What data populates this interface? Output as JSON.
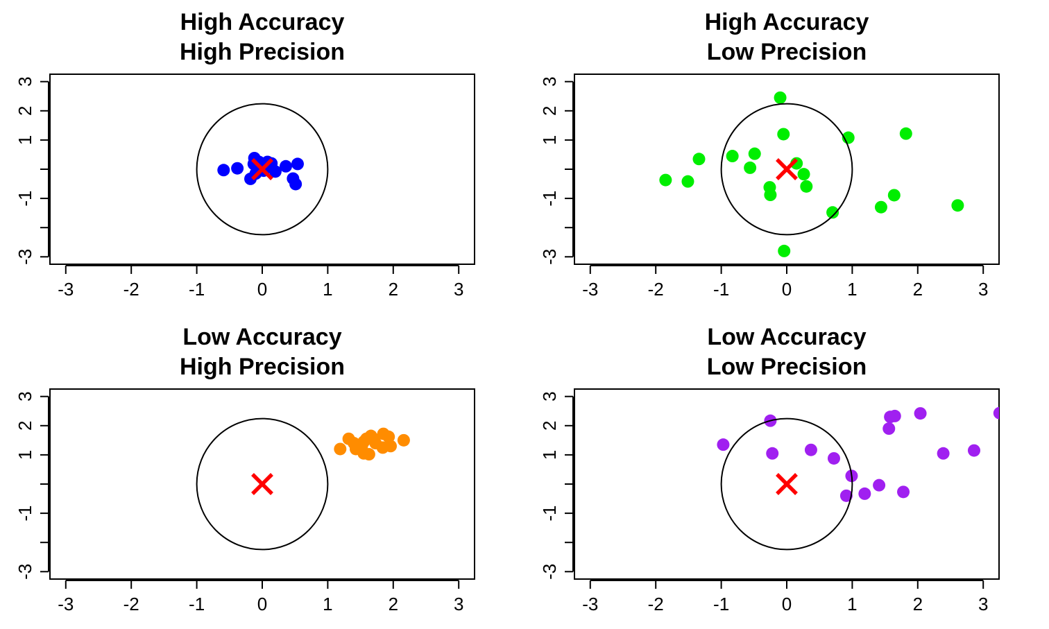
{
  "chart_data": [
    {
      "type": "scatter",
      "title": [
        "High Accuracy",
        "High Precision"
      ],
      "xlim": [
        -3.25,
        3.25
      ],
      "ylim": [
        -3.25,
        3.25
      ],
      "xticks": [
        -3,
        -2,
        -1,
        0,
        1,
        2,
        3
      ],
      "yticks": [
        -3,
        -2,
        -1,
        0,
        1,
        2,
        3
      ],
      "yticklabels": [
        "-3",
        "",
        "-1",
        "",
        "1",
        "2",
        "3"
      ],
      "point_color": "#0000ff",
      "target": {
        "x": 0,
        "y": 0,
        "radius": 1,
        "marker_color": "#ff0000"
      },
      "points": [
        {
          "x": -0.59,
          "y": -0.03
        },
        {
          "x": -0.38,
          "y": 0.03
        },
        {
          "x": -0.18,
          "y": -0.33
        },
        {
          "x": -0.13,
          "y": 0.18
        },
        {
          "x": -0.12,
          "y": 0.38
        },
        {
          "x": -0.05,
          "y": 0.25
        },
        {
          "x": 0.02,
          "y": -0.05
        },
        {
          "x": 0.05,
          "y": 0.15
        },
        {
          "x": 0.08,
          "y": 0.25
        },
        {
          "x": 0.14,
          "y": 0.2
        },
        {
          "x": 0.2,
          "y": -0.08
        },
        {
          "x": 0.36,
          "y": 0.1
        },
        {
          "x": 0.47,
          "y": -0.32
        },
        {
          "x": 0.51,
          "y": -0.51
        },
        {
          "x": 0.54,
          "y": 0.18
        },
        {
          "x": -0.1,
          "y": -0.15
        }
      ]
    },
    {
      "type": "scatter",
      "title": [
        "High Accuracy",
        "Low Precision"
      ],
      "xlim": [
        -3.25,
        3.25
      ],
      "ylim": [
        -3.25,
        3.25
      ],
      "xticks": [
        -3,
        -2,
        -1,
        0,
        1,
        2,
        3
      ],
      "yticks": [
        -3,
        -2,
        -1,
        0,
        1,
        2,
        3
      ],
      "yticklabels": [
        "-3",
        "",
        "-1",
        "",
        "1",
        "2",
        "3"
      ],
      "point_color": "#00ee00",
      "target": {
        "x": 0,
        "y": 0,
        "radius": 1,
        "marker_color": "#ff0000"
      },
      "points": [
        {
          "x": -1.85,
          "y": -0.37
        },
        {
          "x": -1.51,
          "y": -0.42
        },
        {
          "x": -1.34,
          "y": 0.35
        },
        {
          "x": -0.83,
          "y": 0.45
        },
        {
          "x": -0.49,
          "y": 0.53
        },
        {
          "x": -0.56,
          "y": 0.05
        },
        {
          "x": -0.26,
          "y": -0.62
        },
        {
          "x": -0.25,
          "y": -0.88
        },
        {
          "x": -0.1,
          "y": 2.45
        },
        {
          "x": -0.05,
          "y": 1.2
        },
        {
          "x": 0.15,
          "y": 0.2
        },
        {
          "x": 0.26,
          "y": -0.17
        },
        {
          "x": 0.3,
          "y": -0.59
        },
        {
          "x": -0.04,
          "y": -2.8
        },
        {
          "x": 0.7,
          "y": -1.48
        },
        {
          "x": 0.94,
          "y": 1.08
        },
        {
          "x": 1.44,
          "y": -1.3
        },
        {
          "x": 1.64,
          "y": -0.89
        },
        {
          "x": 1.82,
          "y": 1.22
        },
        {
          "x": 2.61,
          "y": -1.24
        }
      ]
    },
    {
      "type": "scatter",
      "title": [
        "Low Accuracy",
        "High Precision"
      ],
      "xlim": [
        -3.25,
        3.25
      ],
      "ylim": [
        -3.25,
        3.25
      ],
      "xticks": [
        -3,
        -2,
        -1,
        0,
        1,
        2,
        3
      ],
      "yticks": [
        -3,
        -2,
        -1,
        0,
        1,
        2,
        3
      ],
      "yticklabels": [
        "-3",
        "",
        "-1",
        "",
        "1",
        "2",
        "3"
      ],
      "point_color": "#ff8c00",
      "target": {
        "x": 0,
        "y": 0,
        "radius": 1,
        "marker_color": "#ff0000"
      },
      "points": [
        {
          "x": 1.19,
          "y": 1.2
        },
        {
          "x": 1.32,
          "y": 1.55
        },
        {
          "x": 1.4,
          "y": 1.4
        },
        {
          "x": 1.43,
          "y": 1.2
        },
        {
          "x": 1.52,
          "y": 1.3
        },
        {
          "x": 1.55,
          "y": 1.05
        },
        {
          "x": 1.59,
          "y": 1.55
        },
        {
          "x": 1.63,
          "y": 1.02
        },
        {
          "x": 1.66,
          "y": 1.65
        },
        {
          "x": 1.73,
          "y": 1.4
        },
        {
          "x": 1.84,
          "y": 1.25
        },
        {
          "x": 1.85,
          "y": 1.72
        },
        {
          "x": 1.93,
          "y": 1.62
        },
        {
          "x": 1.96,
          "y": 1.3
        },
        {
          "x": 2.16,
          "y": 1.5
        },
        {
          "x": 1.55,
          "y": 1.45
        },
        {
          "x": 1.7,
          "y": 1.55
        }
      ]
    },
    {
      "type": "scatter",
      "title": [
        "Low Accuracy",
        "Low Precision"
      ],
      "xlim": [
        -3.25,
        3.25
      ],
      "ylim": [
        -3.25,
        3.25
      ],
      "xticks": [
        -3,
        -2,
        -1,
        0,
        1,
        2,
        3
      ],
      "yticks": [
        -3,
        -2,
        -1,
        0,
        1,
        2,
        3
      ],
      "yticklabels": [
        "-3",
        "",
        "-1",
        "",
        "1",
        "2",
        "3"
      ],
      "point_color": "#a020f0",
      "target": {
        "x": 0,
        "y": 0,
        "radius": 1,
        "marker_color": "#ff0000"
      },
      "points": [
        {
          "x": -0.97,
          "y": 1.35
        },
        {
          "x": -0.25,
          "y": 2.17
        },
        {
          "x": -0.22,
          "y": 1.05
        },
        {
          "x": 0.37,
          "y": 1.17
        },
        {
          "x": 0.72,
          "y": 0.88
        },
        {
          "x": 0.99,
          "y": 0.28
        },
        {
          "x": 0.91,
          "y": -0.4
        },
        {
          "x": 1.19,
          "y": -0.33
        },
        {
          "x": 1.41,
          "y": -0.04
        },
        {
          "x": 1.56,
          "y": 1.9
        },
        {
          "x": 1.58,
          "y": 2.3
        },
        {
          "x": 1.65,
          "y": 2.33
        },
        {
          "x": 1.78,
          "y": -0.27
        },
        {
          "x": 2.04,
          "y": 2.42
        },
        {
          "x": 2.39,
          "y": 1.05
        },
        {
          "x": 2.86,
          "y": 1.15
        },
        {
          "x": 3.25,
          "y": 2.43
        }
      ]
    }
  ]
}
